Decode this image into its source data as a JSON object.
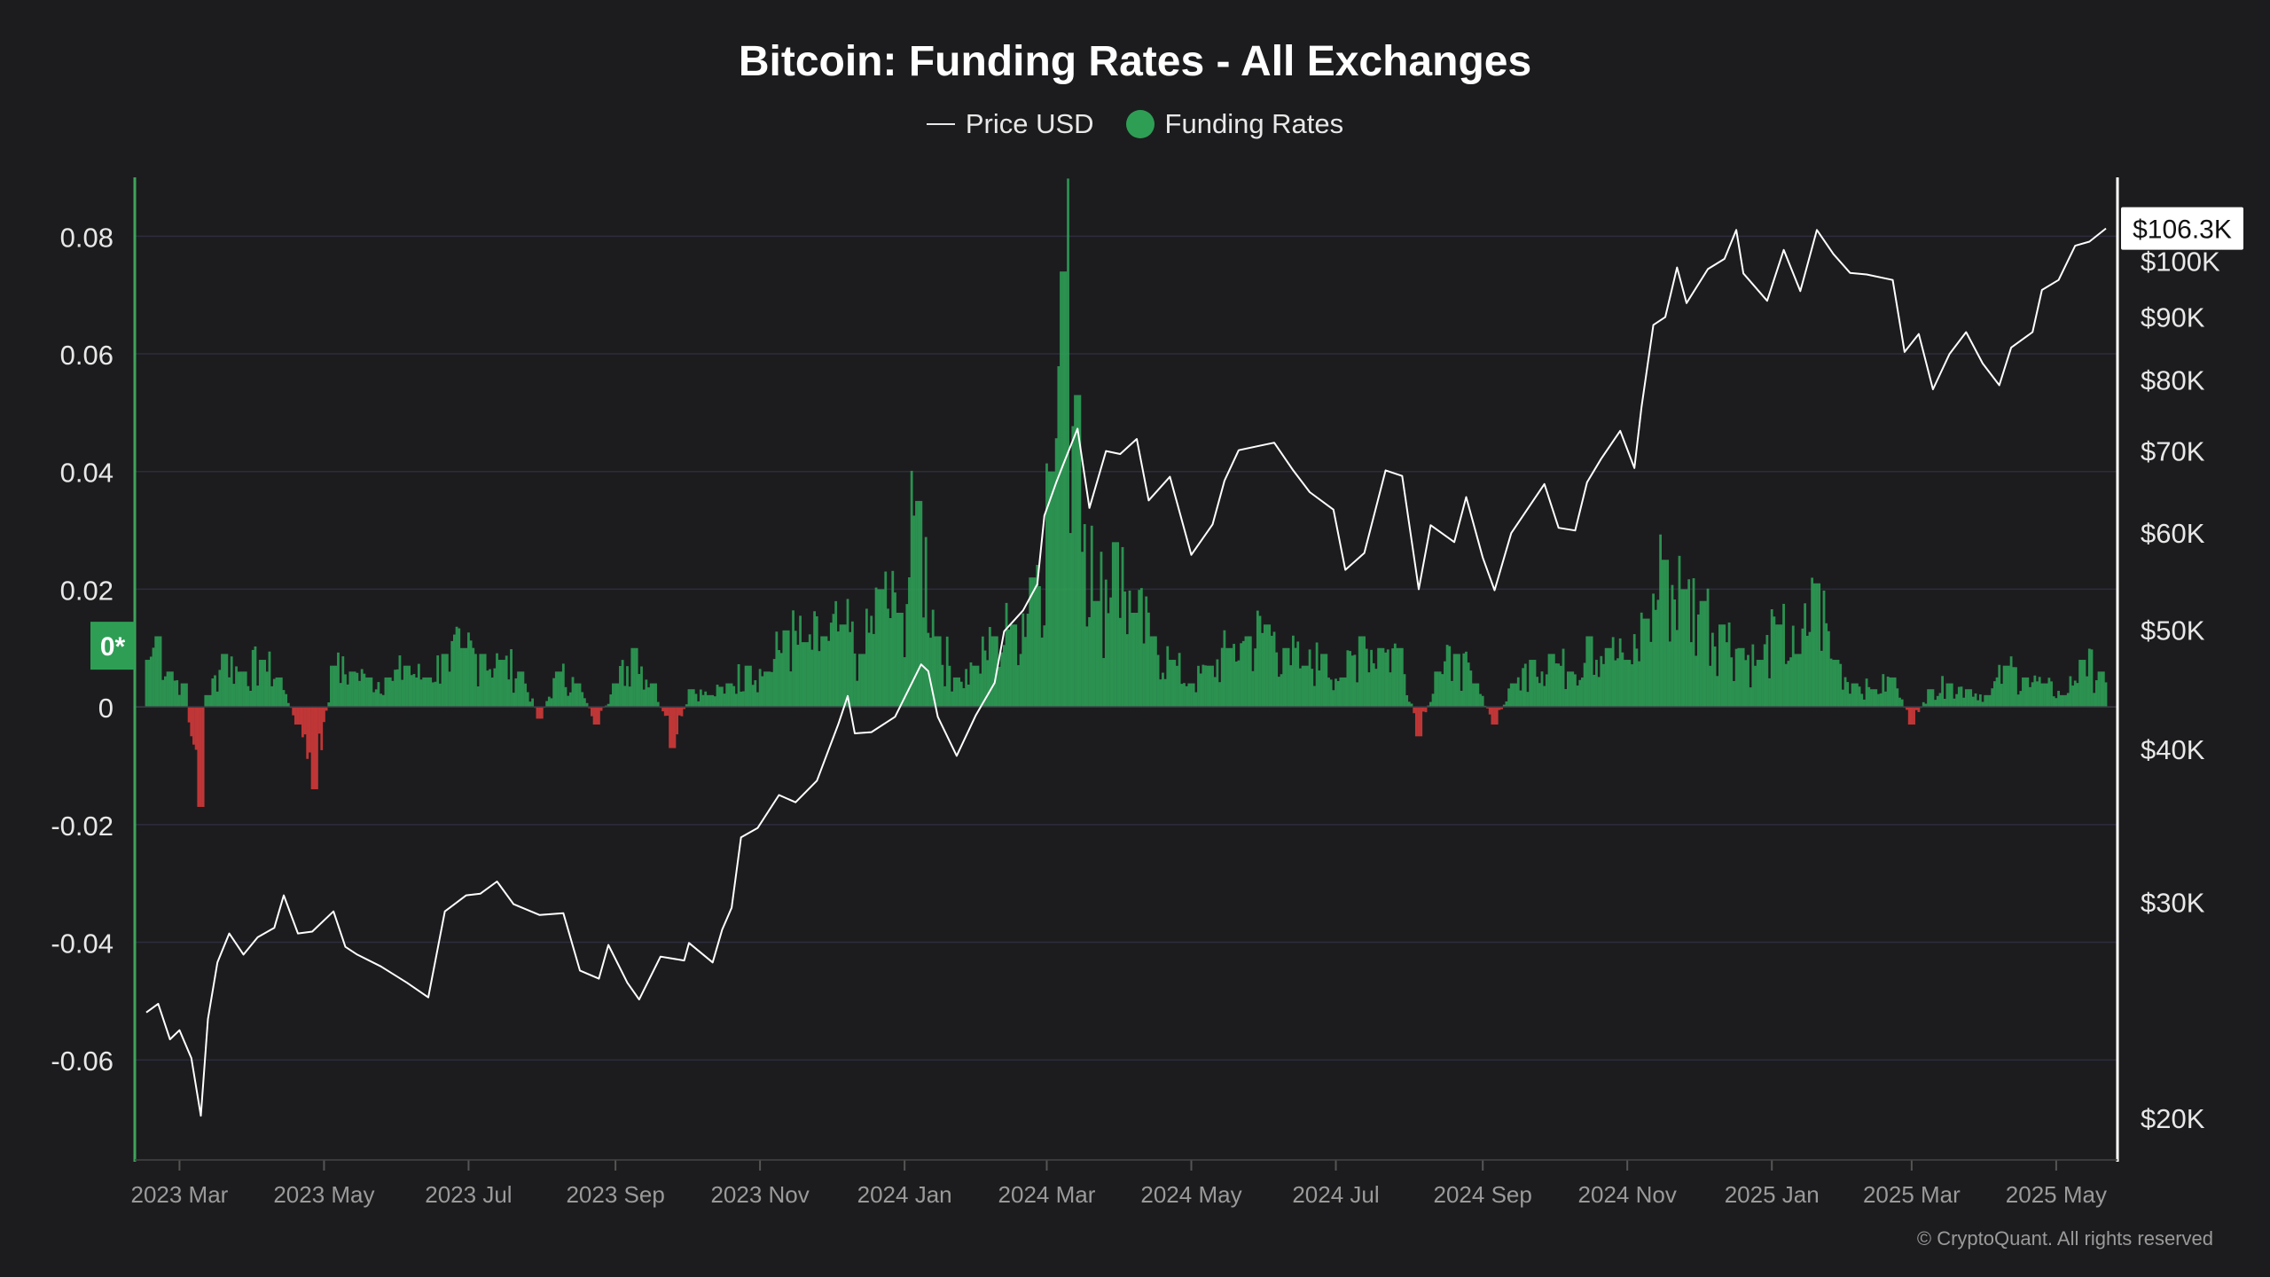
{
  "title": "Bitcoin: Funding Rates - All Exchanges",
  "copyright": "© CryptoQuant. All rights reserved",
  "legend": {
    "price_label": "Price USD",
    "funding_label": "Funding Rates"
  },
  "colors": {
    "background": "#1c1c1e",
    "positive": "#2e9e55",
    "negative": "#d23a3a",
    "price": "#ffffff",
    "grid": "#2c2c3e",
    "axis": "#3fa45b"
  },
  "left_axis_ticks": [
    "0.08",
    "0.06",
    "0.04",
    "0.02",
    "0",
    "-0.02",
    "-0.04",
    "-0.06"
  ],
  "zero_badge": "0*",
  "right_axis_ticks": [
    "$100K",
    "$90K",
    "$80K",
    "$70K",
    "$60K",
    "$50K",
    "$40K",
    "$30K",
    "$20K"
  ],
  "current_price_badge": "$106.3K",
  "x_axis_ticks": [
    "2023 Mar",
    "2023 May",
    "2023 Jul",
    "2023 Sep",
    "2023 Nov",
    "2024 Jan",
    "2024 Mar",
    "2024 May",
    "2024 Jul",
    "2024 Sep",
    "2024 Nov",
    "2025 Jan",
    "2025 Mar",
    "2025 May"
  ],
  "chart_data": {
    "type": "bar",
    "title": "Bitcoin: Funding Rates - All Exchanges",
    "x_range": [
      "2023-02-15",
      "2025-05-22"
    ],
    "y_left_range": [
      -0.077,
      0.09
    ],
    "y_right_scale": "log",
    "y_right_range": [
      18500,
      117000
    ],
    "legend_position": "top-center",
    "grid": true,
    "series": [
      {
        "name": "Price USD",
        "type": "line",
        "axis": "right",
        "points": [
          [
            "2023-02-15",
            24400
          ],
          [
            "2023-02-20",
            24800
          ],
          [
            "2023-02-25",
            23200
          ],
          [
            "2023-03-01",
            23600
          ],
          [
            "2023-03-06",
            22400
          ],
          [
            "2023-03-10",
            20100
          ],
          [
            "2023-03-13",
            24100
          ],
          [
            "2023-03-17",
            26800
          ],
          [
            "2023-03-22",
            28300
          ],
          [
            "2023-03-28",
            27200
          ],
          [
            "2023-04-03",
            28100
          ],
          [
            "2023-04-10",
            28600
          ],
          [
            "2023-04-14",
            30400
          ],
          [
            "2023-04-20",
            28300
          ],
          [
            "2023-04-26",
            28400
          ],
          [
            "2023-05-05",
            29500
          ],
          [
            "2023-05-10",
            27600
          ],
          [
            "2023-05-15",
            27200
          ],
          [
            "2023-05-25",
            26600
          ],
          [
            "2023-06-05",
            25800
          ],
          [
            "2023-06-14",
            25100
          ],
          [
            "2023-06-21",
            29500
          ],
          [
            "2023-06-30",
            30400
          ],
          [
            "2023-07-06",
            30500
          ],
          [
            "2023-07-13",
            31200
          ],
          [
            "2023-07-20",
            29900
          ],
          [
            "2023-07-31",
            29300
          ],
          [
            "2023-08-10",
            29400
          ],
          [
            "2023-08-17",
            26400
          ],
          [
            "2023-08-25",
            26000
          ],
          [
            "2023-08-29",
            27700
          ],
          [
            "2023-09-06",
            25800
          ],
          [
            "2023-09-11",
            25000
          ],
          [
            "2023-09-20",
            27100
          ],
          [
            "2023-09-30",
            26900
          ],
          [
            "2023-10-02",
            27800
          ],
          [
            "2023-10-12",
            26800
          ],
          [
            "2023-10-16",
            28500
          ],
          [
            "2023-10-20",
            29700
          ],
          [
            "2023-10-24",
            33900
          ],
          [
            "2023-10-31",
            34500
          ],
          [
            "2023-11-09",
            36700
          ],
          [
            "2023-11-16",
            36200
          ],
          [
            "2023-11-25",
            37700
          ],
          [
            "2023-12-04",
            41900
          ],
          [
            "2023-12-08",
            44200
          ],
          [
            "2023-12-11",
            41200
          ],
          [
            "2023-12-18",
            41300
          ],
          [
            "2023-12-28",
            42500
          ],
          [
            "2024-01-08",
            46900
          ],
          [
            "2024-01-11",
            46300
          ],
          [
            "2024-01-15",
            42500
          ],
          [
            "2024-01-23",
            39500
          ],
          [
            "2024-01-31",
            42600
          ],
          [
            "2024-02-08",
            45300
          ],
          [
            "2024-02-12",
            49900
          ],
          [
            "2024-02-20",
            51900
          ],
          [
            "2024-02-26",
            54500
          ],
          [
            "2024-02-29",
            62000
          ],
          [
            "2024-03-05",
            66000
          ],
          [
            "2024-03-08",
            68300
          ],
          [
            "2024-03-14",
            73000
          ],
          [
            "2024-03-19",
            62900
          ],
          [
            "2024-03-26",
            70000
          ],
          [
            "2024-04-01",
            69600
          ],
          [
            "2024-04-08",
            71600
          ],
          [
            "2024-04-13",
            63800
          ],
          [
            "2024-04-22",
            66700
          ],
          [
            "2024-05-01",
            57600
          ],
          [
            "2024-05-10",
            61000
          ],
          [
            "2024-05-15",
            66200
          ],
          [
            "2024-05-21",
            70100
          ],
          [
            "2024-06-05",
            71100
          ],
          [
            "2024-06-13",
            67500
          ],
          [
            "2024-06-20",
            64800
          ],
          [
            "2024-06-30",
            62700
          ],
          [
            "2024-07-05",
            56000
          ],
          [
            "2024-07-13",
            57800
          ],
          [
            "2024-07-22",
            67500
          ],
          [
            "2024-07-29",
            66800
          ],
          [
            "2024-08-05",
            54000
          ],
          [
            "2024-08-10",
            60900
          ],
          [
            "2024-08-20",
            59000
          ],
          [
            "2024-08-25",
            64200
          ],
          [
            "2024-09-01",
            57300
          ],
          [
            "2024-09-06",
            53900
          ],
          [
            "2024-09-13",
            60000
          ],
          [
            "2024-09-27",
            65800
          ],
          [
            "2024-10-03",
            60600
          ],
          [
            "2024-10-10",
            60300
          ],
          [
            "2024-10-15",
            66000
          ],
          [
            "2024-10-21",
            69000
          ],
          [
            "2024-10-29",
            72700
          ],
          [
            "2024-11-04",
            67800
          ],
          [
            "2024-11-07",
            76000
          ],
          [
            "2024-11-12",
            88700
          ],
          [
            "2024-11-17",
            90000
          ],
          [
            "2024-11-22",
            98800
          ],
          [
            "2024-11-26",
            92400
          ],
          [
            "2024-12-05",
            98500
          ],
          [
            "2024-12-12",
            100400
          ],
          [
            "2024-12-17",
            106000
          ],
          [
            "2024-12-20",
            97700
          ],
          [
            "2024-12-30",
            92800
          ],
          [
            "2025-01-06",
            102100
          ],
          [
            "2025-01-13",
            94500
          ],
          [
            "2025-01-20",
            106000
          ],
          [
            "2025-01-27",
            101300
          ],
          [
            "2025-02-03",
            97800
          ],
          [
            "2025-02-10",
            97500
          ],
          [
            "2025-02-21",
            96500
          ],
          [
            "2025-02-26",
            84300
          ],
          [
            "2025-03-04",
            87200
          ],
          [
            "2025-03-10",
            78600
          ],
          [
            "2025-03-17",
            84000
          ],
          [
            "2025-03-24",
            87500
          ],
          [
            "2025-03-31",
            82500
          ],
          [
            "2025-04-07",
            79200
          ],
          [
            "2025-04-12",
            85000
          ],
          [
            "2025-04-21",
            87500
          ],
          [
            "2025-04-25",
            94700
          ],
          [
            "2025-05-02",
            96500
          ],
          [
            "2025-05-09",
            102900
          ],
          [
            "2025-05-15",
            103700
          ],
          [
            "2025-05-22",
            106300
          ]
        ]
      },
      {
        "name": "Funding Rates",
        "type": "bar",
        "axis": "left",
        "sample": "roughly every 8 days; daily detail estimated",
        "values": [
          [
            "2023-02-15",
            0.008
          ],
          [
            "2023-02-20",
            0.012
          ],
          [
            "2023-02-25",
            0.006
          ],
          [
            "2023-03-03",
            0.004
          ],
          [
            "2023-03-10",
            -0.017
          ],
          [
            "2023-03-13",
            0.002
          ],
          [
            "2023-03-20",
            0.009
          ],
          [
            "2023-03-28",
            0.006
          ],
          [
            "2023-04-05",
            0.008
          ],
          [
            "2023-04-12",
            0.005
          ],
          [
            "2023-04-20",
            -0.003
          ],
          [
            "2023-04-27",
            -0.014
          ],
          [
            "2023-05-05",
            0.007
          ],
          [
            "2023-05-13",
            0.006
          ],
          [
            "2023-05-20",
            0.005
          ],
          [
            "2023-05-28",
            0.005
          ],
          [
            "2023-06-05",
            0.007
          ],
          [
            "2023-06-13",
            0.005
          ],
          [
            "2023-06-21",
            0.009
          ],
          [
            "2023-06-29",
            0.01
          ],
          [
            "2023-07-07",
            0.009
          ],
          [
            "2023-07-15",
            0.008
          ],
          [
            "2023-07-23",
            0.006
          ],
          [
            "2023-07-31",
            -0.002
          ],
          [
            "2023-08-08",
            0.006
          ],
          [
            "2023-08-16",
            0.004
          ],
          [
            "2023-08-24",
            -0.003
          ],
          [
            "2023-09-01",
            0.004
          ],
          [
            "2023-09-09",
            0.01
          ],
          [
            "2023-09-17",
            0.004
          ],
          [
            "2023-09-25",
            -0.007
          ],
          [
            "2023-10-03",
            0.003
          ],
          [
            "2023-10-11",
            0.002
          ],
          [
            "2023-10-19",
            0.004
          ],
          [
            "2023-10-27",
            0.007
          ],
          [
            "2023-11-04",
            0.006
          ],
          [
            "2023-11-12",
            0.013
          ],
          [
            "2023-11-20",
            0.011
          ],
          [
            "2023-11-28",
            0.012
          ],
          [
            "2023-12-06",
            0.014
          ],
          [
            "2023-12-14",
            0.009
          ],
          [
            "2023-12-22",
            0.02
          ],
          [
            "2023-12-30",
            0.016
          ],
          [
            "2024-01-07",
            0.035
          ],
          [
            "2024-01-15",
            0.012
          ],
          [
            "2024-01-23",
            0.005
          ],
          [
            "2024-01-31",
            0.007
          ],
          [
            "2024-02-08",
            0.012
          ],
          [
            "2024-02-16",
            0.014
          ],
          [
            "2024-02-24",
            0.022
          ],
          [
            "2024-03-03",
            0.04
          ],
          [
            "2024-03-08",
            0.074
          ],
          [
            "2024-03-14",
            0.053
          ],
          [
            "2024-03-22",
            0.018
          ],
          [
            "2024-03-30",
            0.028
          ],
          [
            "2024-04-07",
            0.016
          ],
          [
            "2024-04-15",
            0.012
          ],
          [
            "2024-04-23",
            0.008
          ],
          [
            "2024-05-01",
            0.004
          ],
          [
            "2024-05-09",
            0.007
          ],
          [
            "2024-05-17",
            0.01
          ],
          [
            "2024-05-25",
            0.012
          ],
          [
            "2024-06-02",
            0.014
          ],
          [
            "2024-06-10",
            0.01
          ],
          [
            "2024-06-18",
            0.007
          ],
          [
            "2024-06-26",
            0.009
          ],
          [
            "2024-07-04",
            0.005
          ],
          [
            "2024-07-12",
            0.012
          ],
          [
            "2024-07-20",
            0.01
          ],
          [
            "2024-07-28",
            0.01
          ],
          [
            "2024-08-05",
            -0.005
          ],
          [
            "2024-08-13",
            0.006
          ],
          [
            "2024-08-21",
            0.009
          ],
          [
            "2024-08-29",
            0.004
          ],
          [
            "2024-09-06",
            -0.003
          ],
          [
            "2024-09-14",
            0.004
          ],
          [
            "2024-09-22",
            0.008
          ],
          [
            "2024-09-30",
            0.009
          ],
          [
            "2024-10-08",
            0.006
          ],
          [
            "2024-10-16",
            0.012
          ],
          [
            "2024-10-24",
            0.01
          ],
          [
            "2024-11-01",
            0.008
          ],
          [
            "2024-11-09",
            0.015
          ],
          [
            "2024-11-17",
            0.025
          ],
          [
            "2024-11-25",
            0.02
          ],
          [
            "2024-12-03",
            0.018
          ],
          [
            "2024-12-11",
            0.014
          ],
          [
            "2024-12-19",
            0.01
          ],
          [
            "2024-12-27",
            0.008
          ],
          [
            "2025-01-04",
            0.014
          ],
          [
            "2025-01-12",
            0.009
          ],
          [
            "2025-01-20",
            0.021
          ],
          [
            "2025-01-28",
            0.008
          ],
          [
            "2025-02-05",
            0.004
          ],
          [
            "2025-02-13",
            0.003
          ],
          [
            "2025-02-21",
            0.005
          ],
          [
            "2025-03-01",
            -0.003
          ],
          [
            "2025-03-09",
            0.003
          ],
          [
            "2025-03-17",
            0.004
          ],
          [
            "2025-03-25",
            0.003
          ],
          [
            "2025-04-02",
            0.002
          ],
          [
            "2025-04-10",
            0.007
          ],
          [
            "2025-04-18",
            0.005
          ],
          [
            "2025-04-26",
            0.004
          ],
          [
            "2025-05-04",
            0.002
          ],
          [
            "2025-05-12",
            0.008
          ],
          [
            "2025-05-20",
            0.006
          ]
        ]
      }
    ]
  }
}
